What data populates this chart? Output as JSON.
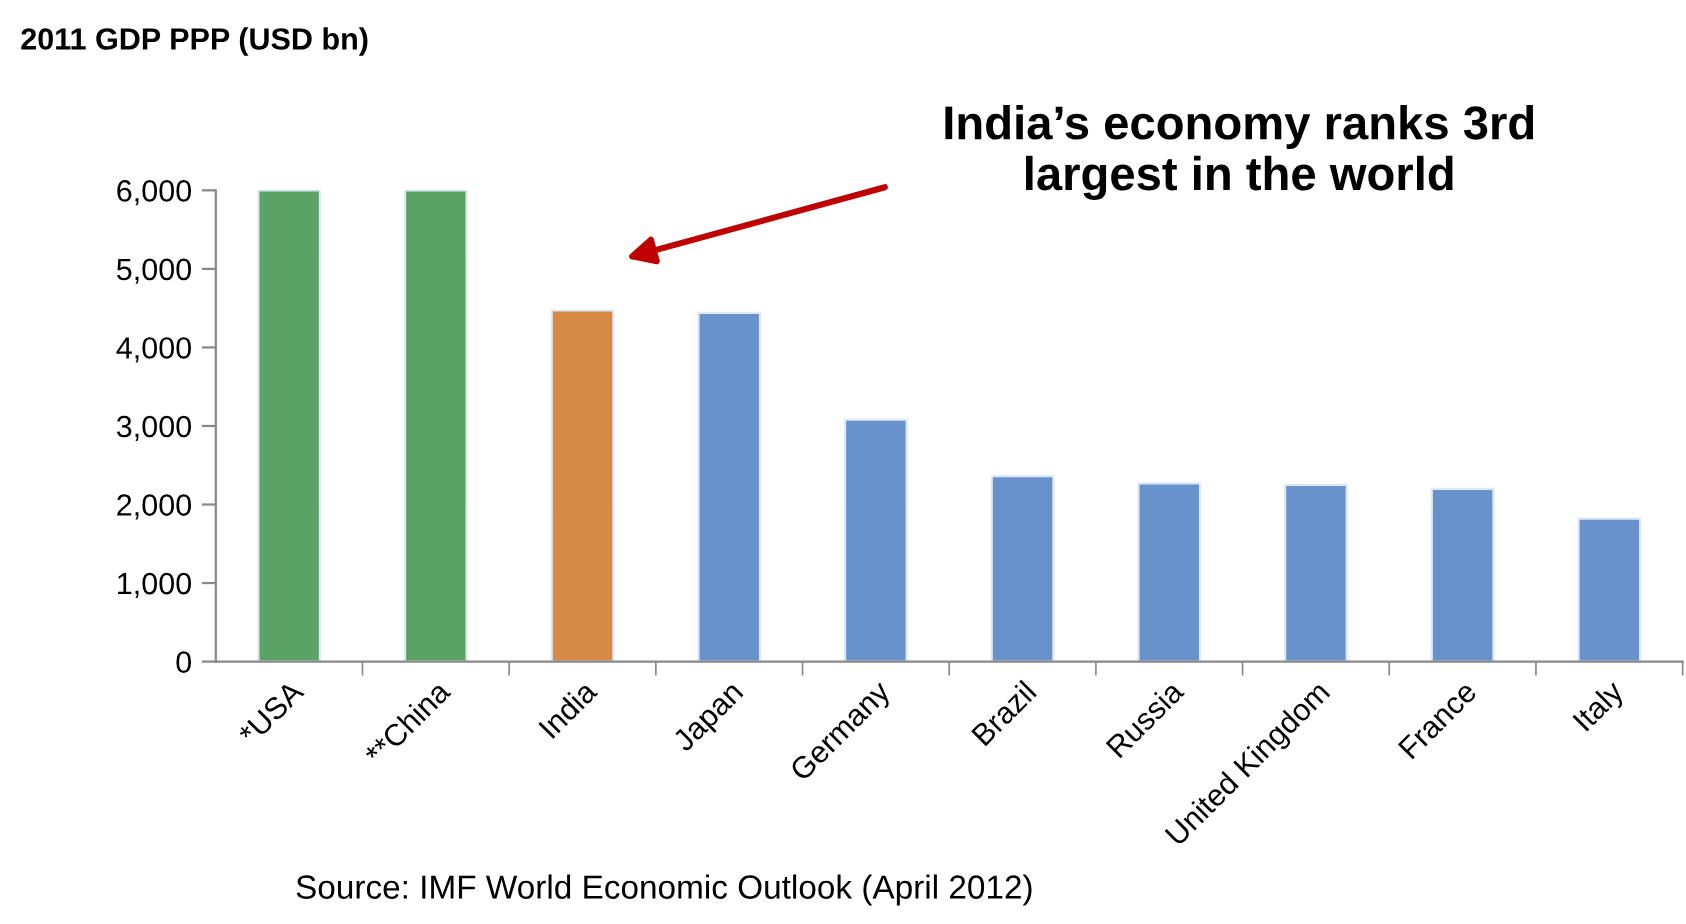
{
  "chart_data": {
    "type": "bar",
    "title": "2011 GDP PPP (USD bn)",
    "categories": [
      "*USA",
      "**China",
      "India",
      "Japan",
      "Germany",
      "Brazil",
      "Russia",
      "United Kingdom",
      "France",
      "Italy"
    ],
    "values": [
      6000,
      6000,
      4470,
      4440,
      3080,
      2360,
      2270,
      2250,
      2200,
      1820
    ],
    "colors": [
      "#5ba365",
      "#5ba365",
      "#d68a45",
      "#6792cc",
      "#6792cc",
      "#6792cc",
      "#6792cc",
      "#6792cc",
      "#6792cc",
      "#6792cc"
    ],
    "ylim": [
      0,
      6000
    ],
    "yticks": [
      0,
      {
        "value": 1000,
        "label": "1,000"
      },
      {
        "value": 2000,
        "label": "2,000"
      },
      {
        "value": 3000,
        "label": "3,000"
      },
      {
        "value": 4000,
        "label": "4,000"
      },
      {
        "value": 5000,
        "label": "5,000"
      },
      {
        "value": 6000,
        "label": "6,000"
      }
    ],
    "grid": false,
    "legend": false,
    "annotations": [
      "India’s economy ranks 3rd\nlargest in the world",
      "Source: IMF World Economic Outlook (April 2012)"
    ]
  }
}
